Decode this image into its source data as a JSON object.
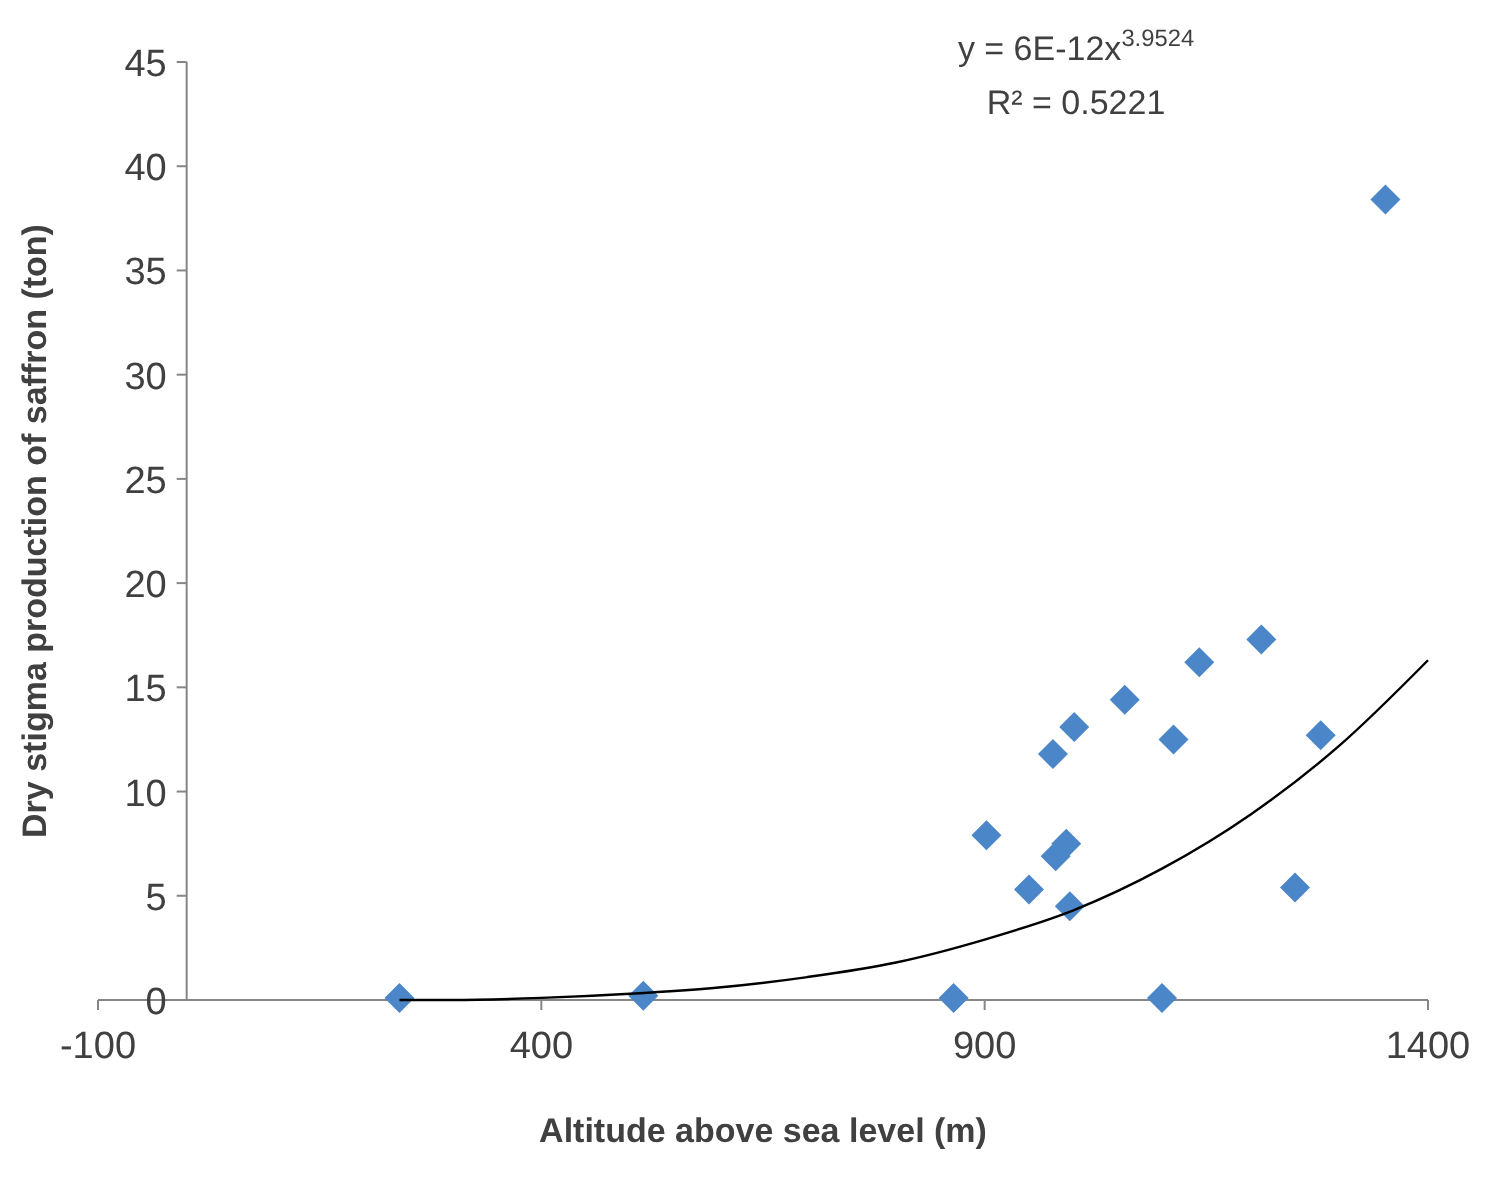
{
  "chart_data": {
    "type": "scatter",
    "xlabel": "Altitude above sea level (m)",
    "ylabel": "Dry stigma production of saffron (ton)",
    "annotations": [
      "y = 6E-12x$^{3.9524}$",
      "R² = 0.5221"
    ],
    "xlim": [
      -100,
      1400
    ],
    "xticks": [
      -100,
      400,
      900,
      1400
    ],
    "ylim": [
      0,
      45
    ],
    "yticks": [
      0,
      5,
      10,
      15,
      20,
      25,
      30,
      35,
      40,
      45
    ],
    "grid": false,
    "series": [
      {
        "marker": "diamond",
        "color": "#4a86c8",
        "x": [
          240,
          515,
          865,
          902,
          950,
          977,
          980,
          992,
          996,
          1001,
          1058,
          1100,
          1113,
          1142,
          1212,
          1250,
          1279,
          1352
        ],
        "values": [
          0.1,
          0.2,
          0.1,
          7.9,
          5.3,
          11.8,
          6.9,
          7.5,
          4.5,
          13.1,
          14.4,
          0.1,
          12.5,
          16.2,
          17.3,
          5.4,
          12.7,
          38.4
        ]
      },
      {
        "type": "line",
        "line_style": "solid",
        "color": "#000000",
        "x": [
          240,
          300,
          400,
          500,
          600,
          700,
          800,
          900,
          1000,
          1100,
          1200,
          1300,
          1400
        ],
        "values": [
          0.0,
          0.0,
          0.1,
          0.3,
          0.6,
          1.1,
          1.8,
          2.9,
          4.3,
          6.3,
          8.9,
          12.2,
          16.3
        ]
      }
    ]
  }
}
